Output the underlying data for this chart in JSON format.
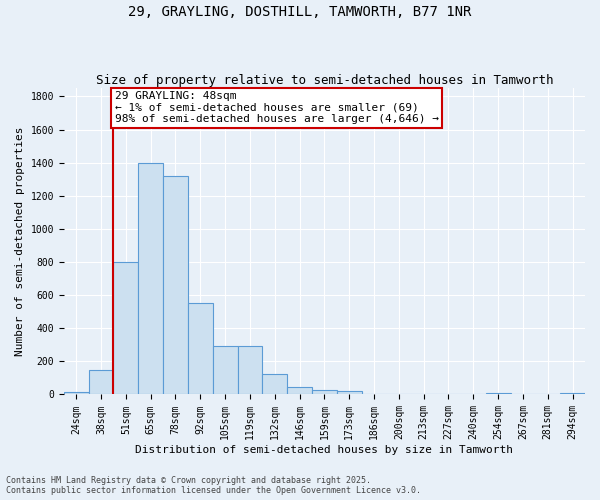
{
  "title": "29, GRAYLING, DOSTHILL, TAMWORTH, B77 1NR",
  "subtitle": "Size of property relative to semi-detached houses in Tamworth",
  "xlabel": "Distribution of semi-detached houses by size in Tamworth",
  "ylabel": "Number of semi-detached properties",
  "categories": [
    "24sqm",
    "38sqm",
    "51sqm",
    "65sqm",
    "78sqm",
    "92sqm",
    "105sqm",
    "119sqm",
    "132sqm",
    "146sqm",
    "159sqm",
    "173sqm",
    "186sqm",
    "200sqm",
    "213sqm",
    "227sqm",
    "240sqm",
    "254sqm",
    "267sqm",
    "281sqm",
    "294sqm"
  ],
  "values": [
    15,
    150,
    800,
    1400,
    1320,
    550,
    295,
    295,
    125,
    45,
    30,
    20,
    5,
    0,
    0,
    0,
    0,
    10,
    0,
    0,
    10
  ],
  "bar_color": "#cce0f0",
  "bar_edge_color": "#5b9bd5",
  "highlight_color": "#cc0000",
  "annotation_line1": "29 GRAYLING: 48sqm",
  "annotation_line2": "← 1% of semi-detached houses are smaller (69)",
  "annotation_line3": "98% of semi-detached houses are larger (4,646) →",
  "annotation_box_color": "#ffffff",
  "annotation_box_edge": "#cc0000",
  "property_size_sqm": 48,
  "red_line_x": 1.5,
  "ylim": [
    0,
    1850
  ],
  "yticks": [
    0,
    200,
    400,
    600,
    800,
    1000,
    1200,
    1400,
    1600,
    1800
  ],
  "footnote": "Contains HM Land Registry data © Crown copyright and database right 2025.\nContains public sector information licensed under the Open Government Licence v3.0.",
  "background_color": "#e8f0f8",
  "grid_color": "#ffffff",
  "title_fontsize": 10,
  "subtitle_fontsize": 9,
  "axis_label_fontsize": 8,
  "tick_fontsize": 7,
  "annotation_fontsize": 8,
  "footnote_fontsize": 6
}
